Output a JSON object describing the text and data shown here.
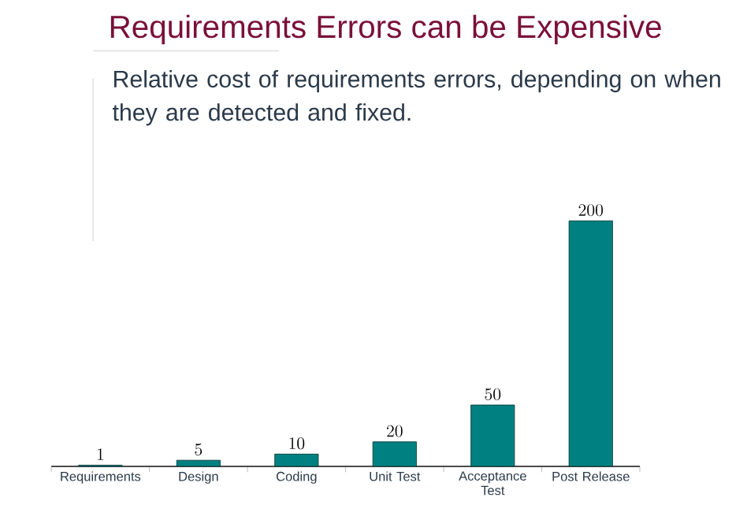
{
  "chart_data": {
    "type": "bar",
    "title": "Requirements Errors can be Expensive",
    "subtitle": "Relative cost of requirements errors, depending on when they are detected and fixed.",
    "categories": [
      "Requirements",
      "Design",
      "Coding",
      "Unit Test",
      "Acceptance Test",
      "Post Release"
    ],
    "values": [
      1,
      5,
      10,
      20,
      50,
      200
    ],
    "color": "#008080",
    "data_labels": true
  }
}
